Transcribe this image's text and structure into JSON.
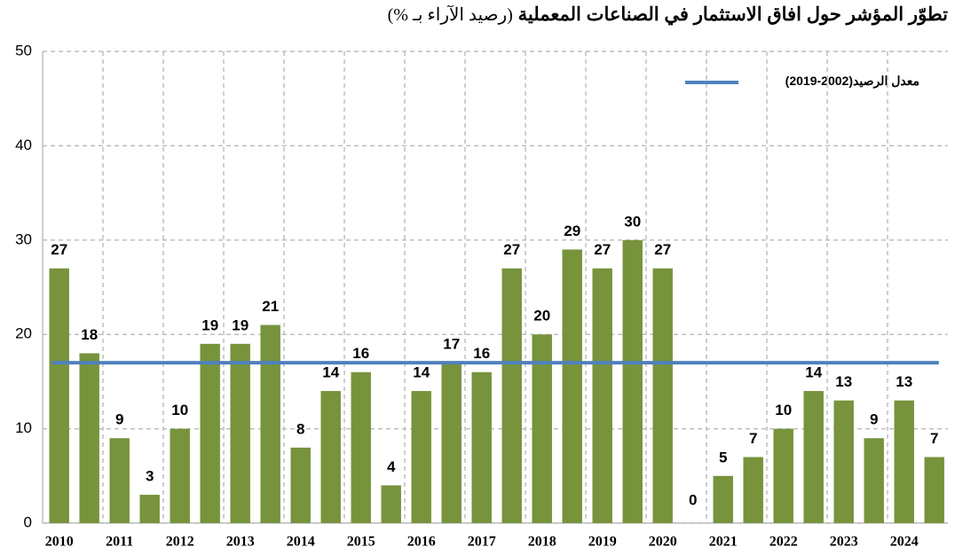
{
  "chart_data": {
    "type": "bar",
    "title": "تطوّر المؤشر حول افاق الاستثمار في الصناعات المعملية",
    "subtitle": "(رصيد الآراء بـ %)",
    "categories": [
      "2010",
      null,
      "2011",
      null,
      "2012",
      null,
      "2013",
      null,
      "2014",
      null,
      "2015",
      null,
      "2016",
      null,
      "2017",
      null,
      "2018",
      null,
      "2019",
      null,
      "2020",
      null,
      "2021",
      null,
      "2022",
      null,
      "2023",
      null,
      "2024",
      null
    ],
    "values": [
      27,
      18,
      9,
      3,
      10,
      19,
      19,
      21,
      8,
      14,
      16,
      4,
      14,
      17,
      16,
      27,
      20,
      29,
      27,
      30,
      27,
      0,
      5,
      7,
      10,
      14,
      13,
      9,
      13,
      7
    ],
    "color": "#77933c",
    "average": {
      "name": "معدل الرصيد(2002-2019)",
      "value": 17,
      "color": "#4f81bd"
    },
    "ylim": [
      0,
      50
    ],
    "yticks": [
      0,
      10,
      20,
      30,
      40,
      50
    ],
    "grid": true
  }
}
